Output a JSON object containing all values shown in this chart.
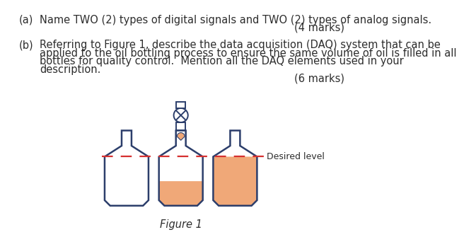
{
  "bg_color": "#ffffff",
  "text_color": "#2d2d2d",
  "bottle_outline_color": "#2c3e6b",
  "bottle_fill_color": "#f0a878",
  "dashed_line_color": "#d63030",
  "figure_caption": "Figure 1",
  "question_a": "Name TWO (2) types of digital signals and TWO (2) types of analog signals.",
  "marks_a": "(4 marks)",
  "question_b_line1": "Referring to Figure 1, describe the data acquisition (DAQ) system that can be",
  "question_b_line2": "applied to the oil bottling process to ensure the same volume of oil is filled in all",
  "question_b_line3": "bottles for quality control.  Mention all the DAQ elements used in your",
  "question_b_line4": "description.",
  "marks_b": "(6 marks)",
  "desired_level_label": "Desired level",
  "font_size_main": 10.5,
  "font_size_label": 9,
  "font_size_caption": 10.5,
  "label_a": "(a)",
  "label_b": "(b)"
}
